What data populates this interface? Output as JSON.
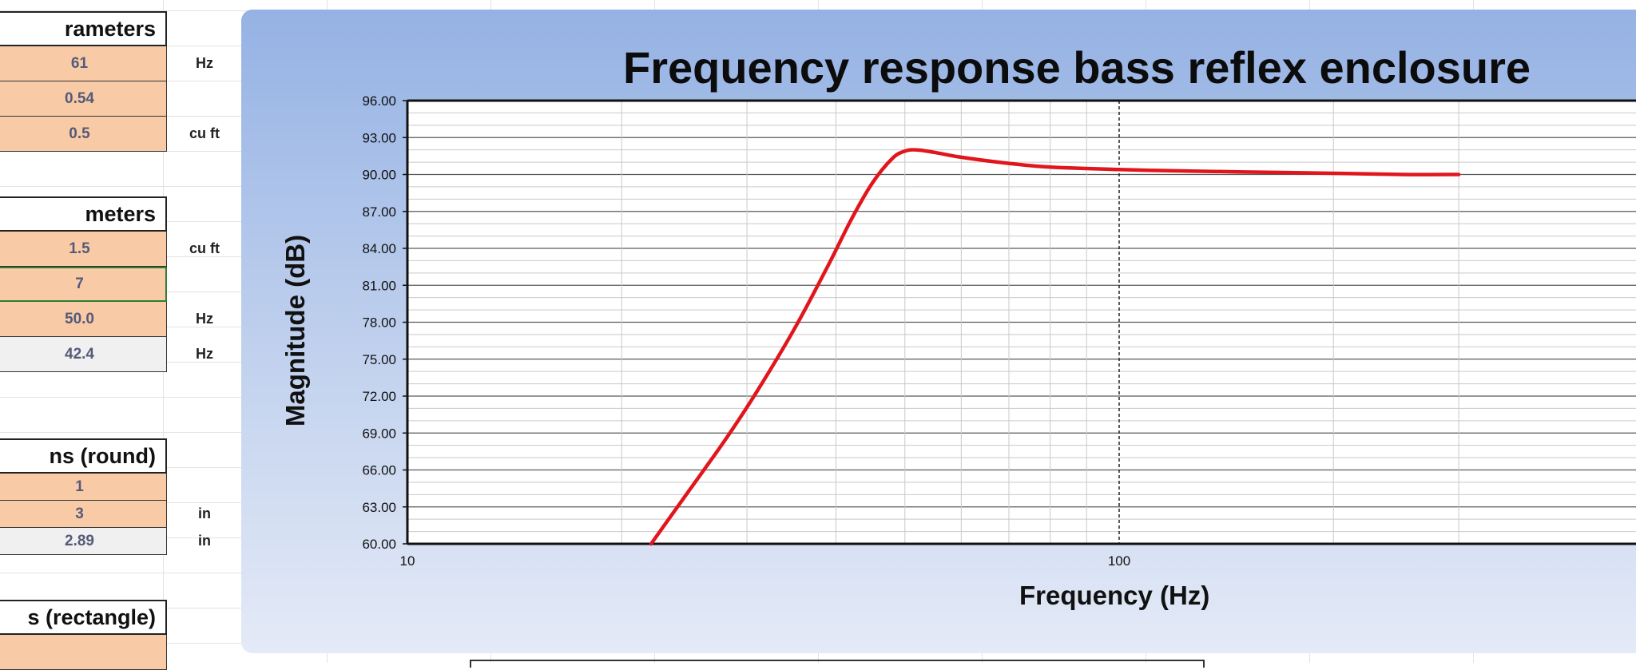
{
  "spreadsheet": {
    "sections": [
      {
        "header": "rameters",
        "rows": [
          {
            "value": "61",
            "unit": "Hz",
            "style": "input"
          },
          {
            "value": "0.54",
            "unit": "",
            "style": "input"
          },
          {
            "value": "0.5",
            "unit": "cu ft",
            "style": "input"
          }
        ]
      },
      {
        "header": "meters",
        "rows": [
          {
            "value": "1.5",
            "unit": "cu ft",
            "style": "input"
          },
          {
            "value": "7",
            "unit": "",
            "style": "selected"
          },
          {
            "value": "50.0",
            "unit": "Hz",
            "style": "input"
          },
          {
            "value": "42.4",
            "unit": "Hz",
            "style": "calc"
          }
        ]
      },
      {
        "header": "ns (round)",
        "rows": [
          {
            "value": "1",
            "unit": "",
            "style": "input"
          },
          {
            "value": "3",
            "unit": "in",
            "style": "input"
          },
          {
            "value": "2.89",
            "unit": "in",
            "style": "calc"
          }
        ]
      },
      {
        "header": "s (rectangle)",
        "rows": [
          {
            "value": "",
            "unit": "",
            "style": "input"
          }
        ]
      }
    ]
  },
  "chart_data": {
    "type": "line",
    "title": "Frequency response bass reflex enclosure",
    "xlabel": "Frequency (Hz)",
    "ylabel": "Magnitude (dB)",
    "xscale": "log",
    "xlim": [
      10,
      300
    ],
    "ylim": [
      60,
      96
    ],
    "y_ticks": [
      "60.00",
      "63.00",
      "66.00",
      "69.00",
      "72.00",
      "75.00",
      "78.00",
      "81.00",
      "84.00",
      "87.00",
      "90.00",
      "93.00",
      "96.00"
    ],
    "x_tick_labels": [
      "10",
      "100"
    ],
    "grid": true,
    "series": [
      {
        "color": "#e0161c",
        "x": [
          22,
          25,
          28,
          31,
          35,
          39,
          42,
          45,
          48,
          50,
          52,
          55,
          60,
          70,
          80,
          100,
          120,
          150,
          200,
          250,
          300
        ],
        "y": [
          60.0,
          64.5,
          68.5,
          72.4,
          77.5,
          82.6,
          86.3,
          89.3,
          91.3,
          91.9,
          92.0,
          91.8,
          91.4,
          90.9,
          90.6,
          90.4,
          90.3,
          90.2,
          90.1,
          90.0,
          90.0
        ]
      }
    ]
  }
}
